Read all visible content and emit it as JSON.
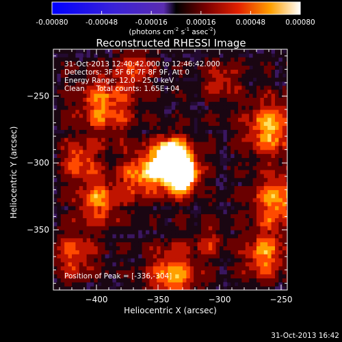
{
  "chart_data": {
    "type": "heatmap",
    "title": "Reconstructed RHESSI Image",
    "colorbar": {
      "ticks": [
        "-0.00080",
        "-0.00048",
        "-0.00016",
        "0.00016",
        "0.00048",
        "0.00080"
      ],
      "range": [
        -0.0008,
        0.0008
      ],
      "unit_main": "(photons cm",
      "unit_exp1": "-2",
      "unit_mid": " s",
      "unit_exp2": "-1",
      "unit_end": " asec",
      "unit_exp3": "-2",
      "unit_close": ")"
    },
    "xlabel": "Heliocentric X (arcsec)",
    "ylabel": "Heliocentric Y (arcsec)",
    "xlim": [
      -435,
      -245
    ],
    "ylim": [
      -395,
      -215
    ],
    "xticks": [
      -400,
      -350,
      -300,
      -250
    ],
    "yticks": [
      -250,
      -300,
      -350
    ],
    "xticklabels": [
      "−400",
      "−350",
      "−300",
      "−250"
    ],
    "yticklabels": [
      "−250",
      "−300",
      "−350"
    ],
    "info_lines": [
      "31-Oct-2013 12:40:42.000 to 12:46:42.000",
      "Detectors: 3F 5F 6F 7F 8F 9F, Att 0",
      "Energy Range: 12.0 - 25.0 keV",
      "Clean     Total counts: 1.65E+04"
    ],
    "peak_label": "Position of Peak = [-336,-304]",
    "peak": [
      -336,
      -304
    ],
    "footer_date": "31-Oct-2013 16:42"
  }
}
